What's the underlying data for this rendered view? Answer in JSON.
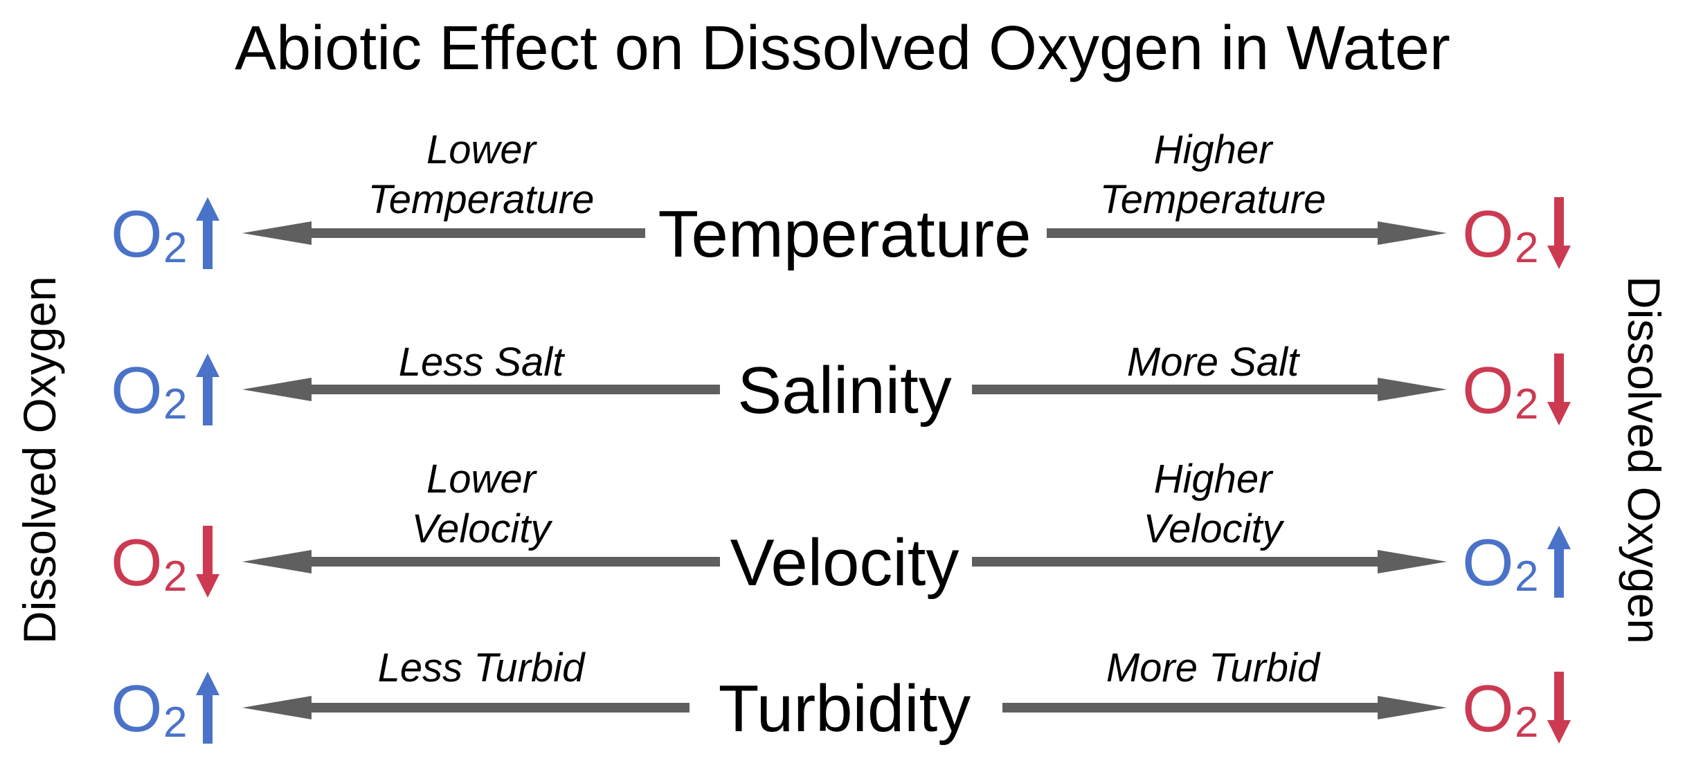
{
  "title": "Abiotic Effect on Dissolved Oxygen in Water",
  "side_label_left": "Dissolved Oxygen",
  "side_label_right": "Dissolved Oxygen",
  "o2_symbol": "O",
  "o2_subscript": "2",
  "colors": {
    "increase": "#4a72c8",
    "decrease": "#cc3a52",
    "arrow": "#5f5f5f",
    "text": "#000000"
  },
  "rows": [
    {
      "factor": "Temperature",
      "left_condition": [
        "Lower",
        "Temperature"
      ],
      "right_condition": [
        "Higher",
        "Temperature"
      ],
      "left_effect": "up",
      "right_effect": "down"
    },
    {
      "factor": "Salinity",
      "left_condition": [
        "Less Salt"
      ],
      "right_condition": [
        "More Salt"
      ],
      "left_effect": "up",
      "right_effect": "down"
    },
    {
      "factor": "Velocity",
      "left_condition": [
        "Lower",
        "Velocity"
      ],
      "right_condition": [
        "Higher",
        "Velocity"
      ],
      "left_effect": "down",
      "right_effect": "up"
    },
    {
      "factor": "Turbidity",
      "left_condition": [
        "Less Turbid"
      ],
      "right_condition": [
        "More Turbid"
      ],
      "left_effect": "up",
      "right_effect": "down"
    }
  ]
}
